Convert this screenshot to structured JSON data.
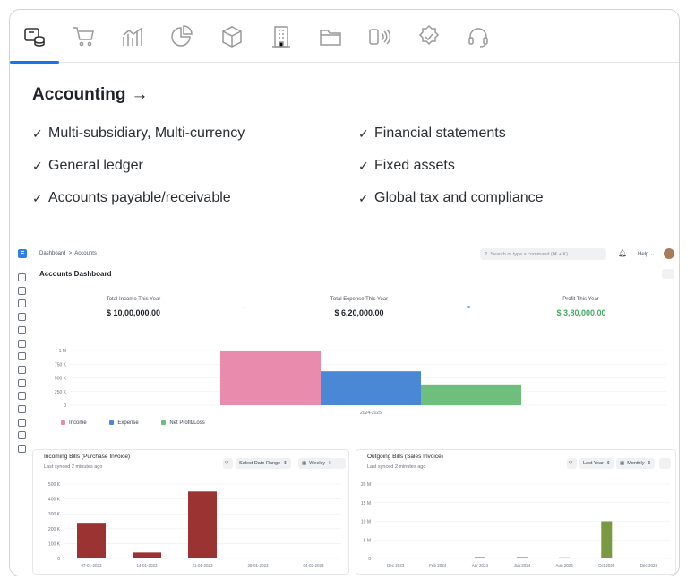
{
  "tabs": [
    {
      "name": "accounting-tab",
      "icon": "database-icon",
      "active": true
    },
    {
      "name": "selling-tab",
      "icon": "cart-icon",
      "active": false
    },
    {
      "name": "analytics-tab",
      "icon": "line-chart-icon",
      "active": false
    },
    {
      "name": "reports-tab",
      "icon": "pie-chart-icon",
      "active": false
    },
    {
      "name": "stock-tab",
      "icon": "box-icon",
      "active": false
    },
    {
      "name": "assets-tab",
      "icon": "building-icon",
      "active": false
    },
    {
      "name": "projects-tab",
      "icon": "folder-icon",
      "active": false
    },
    {
      "name": "pos-tab",
      "icon": "nfc-icon",
      "active": false
    },
    {
      "name": "quality-tab",
      "icon": "badge-check-icon",
      "active": false
    },
    {
      "name": "support-tab",
      "icon": "headset-icon",
      "active": false
    }
  ],
  "section": {
    "title": "Accounting",
    "arrow": "→",
    "features_left": [
      "Multi-subsidiary, Multi-currency",
      "General ledger",
      "Accounts payable/receivable"
    ],
    "features_right": [
      "Financial statements",
      "Fixed assets",
      "Global tax and compliance"
    ]
  },
  "app": {
    "logo_letter": "E",
    "breadcrumb": {
      "root": "Dashboard",
      "separator": ">",
      "current": "Accounts"
    },
    "search_placeholder": "Search or type a command (⌘ + K)",
    "help_label": "Help",
    "page_title": "Accounts Dashboard",
    "more_label": "···",
    "kpis": [
      {
        "label": "Total Income This Year",
        "value": "$ 10,00,000.00"
      },
      {
        "label": "Total Expense This Year",
        "value": "$ 6,20,000.00"
      },
      {
        "label": "Profit This Year",
        "value": "$ 3,80,000.00"
      }
    ],
    "kpi_ops": [
      "-",
      "="
    ],
    "colors": {
      "income": "#e98bac",
      "expense": "#4a88d6",
      "profit": "#6dbf7b",
      "bills": "#9b3333",
      "sales": "#7a9a42",
      "profit_text": "#48a868"
    }
  },
  "chart_data": [
    {
      "type": "bar",
      "categories": [
        "2024-2025"
      ],
      "series": [
        {
          "name": "Income",
          "values": [
            1000000
          ]
        },
        {
          "name": "Expense",
          "values": [
            620000
          ]
        },
        {
          "name": "Net Profit/Loss",
          "values": [
            380000
          ]
        }
      ],
      "ylim": [
        0,
        1000000
      ],
      "yticks": [
        "0",
        "250 K",
        "500 K",
        "750 K",
        "1 M"
      ],
      "legend": "bottom-left"
    },
    {
      "type": "bar",
      "title": "Incoming Bills (Purchase Invoice)",
      "subtitle": "Last synced 2 minutes ago",
      "controls": [
        "Select Date Range",
        "Weekly"
      ],
      "categories": [
        "07-01-2023",
        "14-01-2023",
        "21-01-2023",
        "28-01-2023",
        "04-02-2023"
      ],
      "values": [
        240000,
        40000,
        450000,
        0,
        0
      ],
      "ylim": [
        0,
        500000
      ],
      "yticks": [
        "0",
        "100 K",
        "200 K",
        "300 K",
        "400 K",
        "500 K"
      ]
    },
    {
      "type": "bar",
      "title": "Outgoing Bills (Sales Invoice)",
      "subtitle": "Last synced 2 minutes ago",
      "controls": [
        "Last Year",
        "Monthly"
      ],
      "categories": [
        "Dec 2023",
        "Feb 2024",
        "Apr 2024",
        "Jun 2024",
        "Aug 2024",
        "Oct 2024",
        "Dec 2024"
      ],
      "values": [
        0,
        0,
        0.4,
        0.4,
        0.3,
        10,
        0
      ],
      "ylim": [
        0,
        20
      ],
      "yticks": [
        "0",
        "5 M",
        "10 M",
        "15 M",
        "20 M"
      ]
    }
  ]
}
